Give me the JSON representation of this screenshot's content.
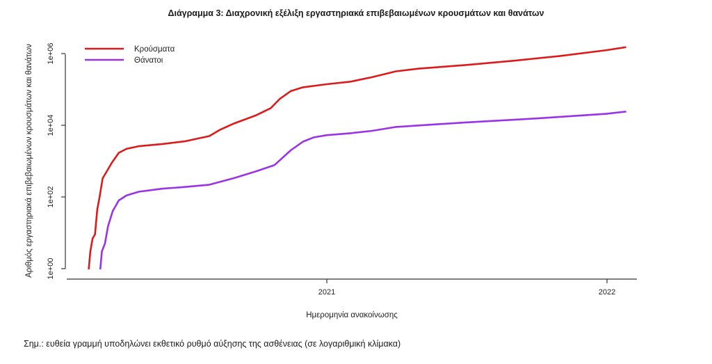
{
  "title": "Διάγραμμα 3: Διαχρονική εξέλιξη εργαστηριακά επιβεβαιωμένων κρουσμάτων και θανάτων",
  "note": "Σημ.: ευθεία γραμμή υποδηλώνει εκθετικό ρυθμό αύξησης της ασθένειας (σε λογαριθμική κλίμακα)",
  "chart_data": {
    "type": "line",
    "title": "Διάγραμμα 3: Διαχρονική εξέλιξη εργαστηριακά επιβεβαιωμένων κρουσμάτων και θανάτων",
    "xlabel": "Ημερομηνία ανακοίνωσης",
    "ylabel": "Αριθμός εργαστηριακά επιβεβαιωμένων κρουσμάτων και θανάτων",
    "y_scale": "log",
    "ylim": [
      1,
      2000000
    ],
    "xlim": [
      "2020-02-15",
      "2022-01-31"
    ],
    "x_ticks": [
      {
        "date": "2021-01-01",
        "label": "2021"
      },
      {
        "date": "2022-01-01",
        "label": "2022"
      }
    ],
    "y_ticks": [
      {
        "value": 1,
        "label": "1e+00"
      },
      {
        "value": 100,
        "label": "1e+02"
      },
      {
        "value": 10000,
        "label": "1e+04"
      },
      {
        "value": 1000000,
        "label": "1e+06"
      }
    ],
    "legend_position": "top-left",
    "grid": false,
    "series": [
      {
        "name": "Κρούσματα",
        "color": "#dd1a1a",
        "points": [
          [
            "2020-02-26",
            1
          ],
          [
            "2020-02-28",
            3
          ],
          [
            "2020-03-02",
            7
          ],
          [
            "2020-03-05",
            9
          ],
          [
            "2020-03-08",
            45
          ],
          [
            "2020-03-11",
            99
          ],
          [
            "2020-03-15",
            330
          ],
          [
            "2020-03-20",
            500
          ],
          [
            "2020-03-27",
            900
          ],
          [
            "2020-04-05",
            1700
          ],
          [
            "2020-04-15",
            2200
          ],
          [
            "2020-05-01",
            2600
          ],
          [
            "2020-06-01",
            3000
          ],
          [
            "2020-07-01",
            3600
          ],
          [
            "2020-08-01",
            5000
          ],
          [
            "2020-08-15",
            7500
          ],
          [
            "2020-09-01",
            11000
          ],
          [
            "2020-10-01",
            19000
          ],
          [
            "2020-10-20",
            30000
          ],
          [
            "2020-11-01",
            55000
          ],
          [
            "2020-11-15",
            90000
          ],
          [
            "2020-12-01",
            115000
          ],
          [
            "2021-01-01",
            140000
          ],
          [
            "2021-02-01",
            165000
          ],
          [
            "2021-03-01",
            220000
          ],
          [
            "2021-04-01",
            320000
          ],
          [
            "2021-05-01",
            380000
          ],
          [
            "2021-07-01",
            480000
          ],
          [
            "2021-09-01",
            630000
          ],
          [
            "2021-11-01",
            860000
          ],
          [
            "2022-01-01",
            1250000
          ],
          [
            "2022-01-25",
            1500000
          ]
        ]
      },
      {
        "name": "Θάνατοι",
        "color": "#9a33e8",
        "points": [
          [
            "2020-03-12",
            1
          ],
          [
            "2020-03-14",
            3
          ],
          [
            "2020-03-18",
            5
          ],
          [
            "2020-03-22",
            15
          ],
          [
            "2020-03-28",
            40
          ],
          [
            "2020-04-05",
            80
          ],
          [
            "2020-04-15",
            110
          ],
          [
            "2020-05-01",
            140
          ],
          [
            "2020-06-01",
            170
          ],
          [
            "2020-07-01",
            190
          ],
          [
            "2020-08-01",
            220
          ],
          [
            "2020-09-01",
            330
          ],
          [
            "2020-10-01",
            520
          ],
          [
            "2020-10-25",
            780
          ],
          [
            "2020-11-15",
            2000
          ],
          [
            "2020-12-01",
            3500
          ],
          [
            "2020-12-15",
            4600
          ],
          [
            "2021-01-01",
            5300
          ],
          [
            "2021-02-01",
            6000
          ],
          [
            "2021-03-01",
            7000
          ],
          [
            "2021-04-01",
            9000
          ],
          [
            "2021-07-01",
            12000
          ],
          [
            "2021-10-01",
            15500
          ],
          [
            "2022-01-01",
            21000
          ],
          [
            "2022-01-25",
            24000
          ]
        ]
      }
    ]
  }
}
